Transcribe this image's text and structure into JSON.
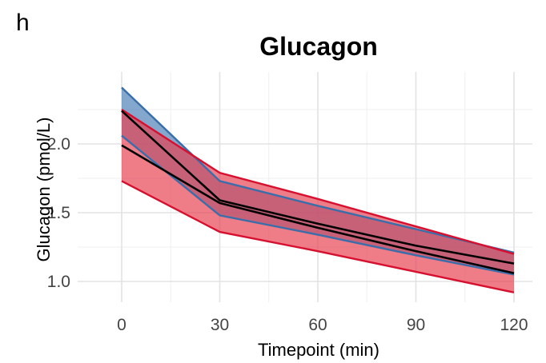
{
  "panel_label": "h",
  "chart_data": {
    "type": "line",
    "title": "Glucagon",
    "xlabel": "Timepoint (min)",
    "ylabel": "Glucagon (pmol/L)",
    "x": [
      0,
      30,
      60,
      90,
      120
    ],
    "xlim": [
      0,
      120
    ],
    "ylim": [
      0.9,
      2.45
    ],
    "xticks": [
      "0",
      "30",
      "60",
      "90",
      "120"
    ],
    "yticks": [
      "1.0",
      "1.5",
      "2.0"
    ],
    "grid": true,
    "legend": "none",
    "series": [
      {
        "color": "#3a6eaa",
        "fill": "#4a7db6",
        "mean": [
          2.24,
          1.59,
          1.42,
          1.26,
          1.13
        ],
        "lower": [
          2.06,
          1.48,
          1.34,
          1.19,
          1.05
        ],
        "upper": [
          2.41,
          1.73,
          1.55,
          1.38,
          1.21
        ]
      },
      {
        "color": "#d6102e",
        "fill": "#e8404f",
        "mean": [
          1.99,
          1.57,
          1.39,
          1.22,
          1.06
        ],
        "lower": [
          1.73,
          1.36,
          1.22,
          1.07,
          0.92
        ],
        "upper": [
          2.25,
          1.79,
          1.6,
          1.4,
          1.2
        ]
      }
    ]
  }
}
